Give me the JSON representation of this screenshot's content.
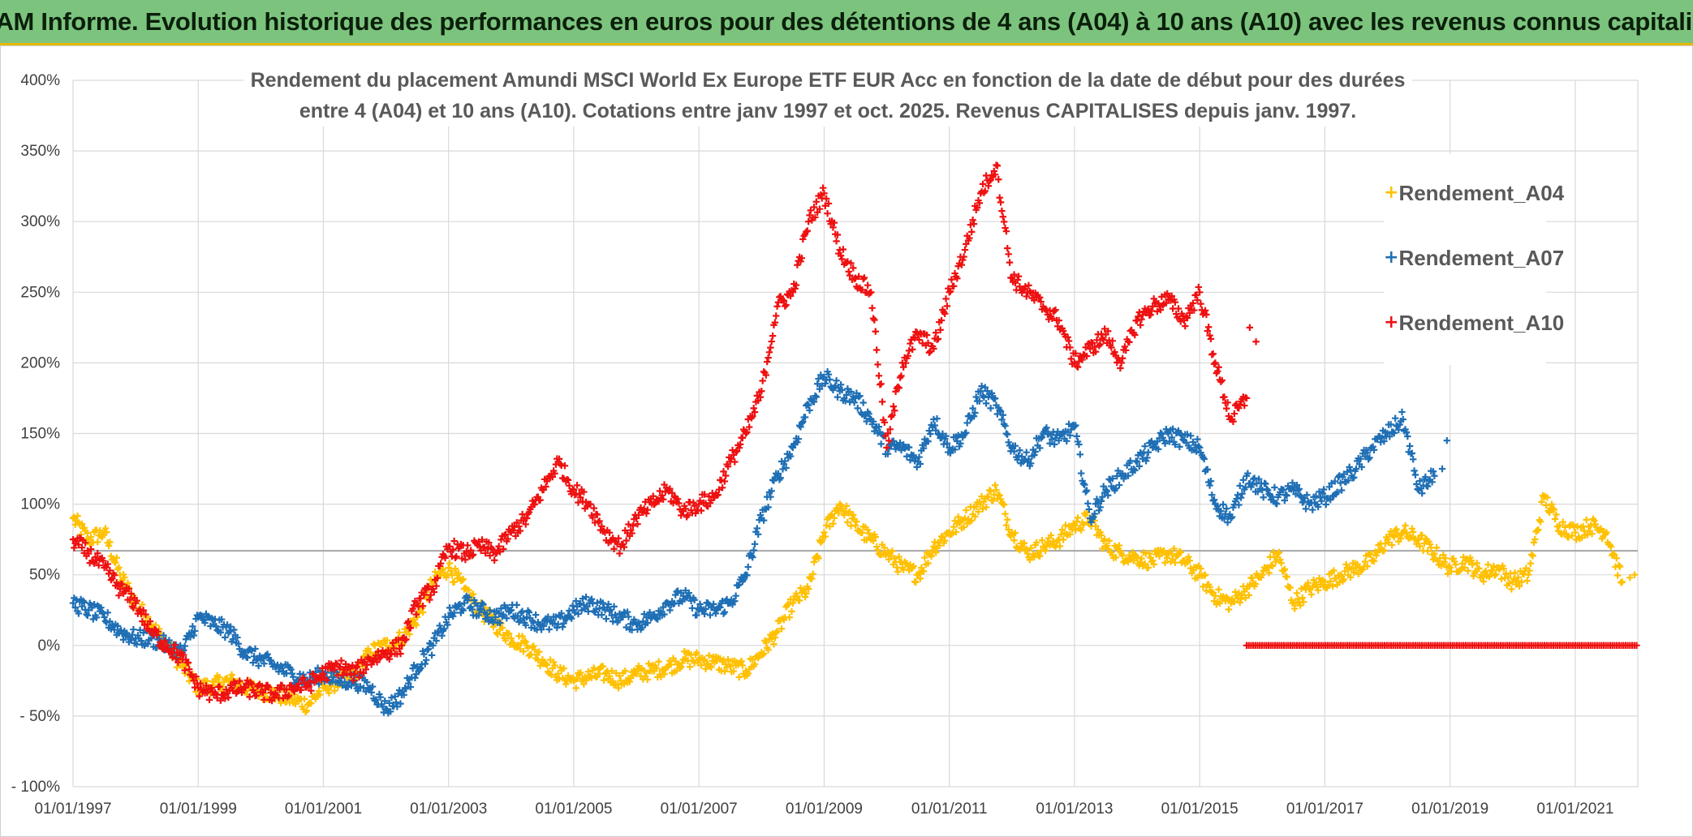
{
  "header": {
    "banner_title": "ADAM Informe. Evolution historique des performances en euros pour des détentions de 4 ans (A04) à 10 ans (A10) avec les revenus connus capitalisés"
  },
  "chart_data": {
    "type": "scatter",
    "title_lines": [
      "Rendement du placement Amundi MSCI World Ex Europe ETF EUR Acc en fonction de la date de début pour des durées",
      "entre 4 (A04) et 10 ans (A10). Cotations entre janv 1997 et oct. 2025. Revenus CAPITALISES depuis janv. 1997."
    ],
    "xlabel": "",
    "ylabel": "",
    "x_unit": "year",
    "xlim": [
      1997.0,
      2022.0
    ],
    "ylim": [
      -100,
      400
    ],
    "y_ticks": [
      -100,
      -50,
      0,
      50,
      100,
      150,
      200,
      250,
      300,
      350,
      400
    ],
    "y_tick_labels": [
      "- 100%",
      "- 50%",
      "0%",
      "50%",
      "100%",
      "150%",
      "200%",
      "250%",
      "300%",
      "350%",
      "400%"
    ],
    "x_ticks": [
      1997,
      1999,
      2001,
      2003,
      2005,
      2007,
      2009,
      2011,
      2013,
      2015,
      2017,
      2019,
      2021
    ],
    "x_tick_labels": [
      "01/01/1997",
      "01/01/1999",
      "01/01/2001",
      "01/01/2003",
      "01/01/2005",
      "01/01/2007",
      "01/01/2009",
      "01/01/2011",
      "01/01/2013",
      "01/01/2015",
      "01/01/2017",
      "01/01/2019",
      "01/01/2021"
    ],
    "grid": true,
    "reference_line_y": 67,
    "legend_position": "right",
    "series": [
      {
        "name": "Rendement_A04",
        "color": "#ffc000",
        "marker": "+",
        "x": [
          1997.0,
          1997.25,
          1997.5,
          1997.75,
          1998.0,
          1998.25,
          1998.5,
          1998.75,
          1999.0,
          1999.25,
          1999.5,
          1999.75,
          2000.0,
          2000.25,
          2000.5,
          2000.75,
          2001.0,
          2001.25,
          2001.5,
          2001.75,
          2002.0,
          2002.25,
          2002.5,
          2002.75,
          2003.0,
          2003.25,
          2003.5,
          2003.75,
          2004.0,
          2004.25,
          2004.5,
          2004.75,
          2005.0,
          2005.25,
          2005.5,
          2005.75,
          2006.0,
          2006.25,
          2006.5,
          2006.75,
          2007.0,
          2007.25,
          2007.5,
          2007.75,
          2008.0,
          2008.25,
          2008.5,
          2008.75,
          2009.0,
          2009.25,
          2009.5,
          2009.75,
          2010.0,
          2010.25,
          2010.5,
          2010.75,
          2011.0,
          2011.25,
          2011.5,
          2011.75,
          2012.0,
          2012.25,
          2012.5,
          2012.75,
          2013.0,
          2013.25,
          2013.5,
          2013.75,
          2014.0,
          2014.25,
          2014.5,
          2014.75,
          2015.0,
          2015.25,
          2015.5,
          2015.75,
          2016.0,
          2016.25,
          2016.5,
          2016.75,
          2017.0,
          2017.25,
          2017.5,
          2017.75,
          2018.0,
          2018.25,
          2018.5,
          2018.75,
          2019.0,
          2019.25,
          2019.5,
          2019.75,
          2020.0,
          2020.25,
          2020.5,
          2020.75,
          2021.0,
          2021.25,
          2021.5,
          2021.75
        ],
        "values": [
          90,
          75,
          80,
          50,
          30,
          15,
          0,
          -15,
          -30,
          -28,
          -25,
          -30,
          -32,
          -35,
          -38,
          -42,
          -30,
          -25,
          -20,
          -5,
          0,
          5,
          20,
          45,
          55,
          40,
          25,
          15,
          5,
          0,
          -10,
          -20,
          -25,
          -22,
          -20,
          -25,
          -20,
          -18,
          -15,
          -10,
          -10,
          -12,
          -15,
          -18,
          -5,
          10,
          30,
          40,
          80,
          100,
          85,
          75,
          65,
          55,
          50,
          70,
          80,
          90,
          100,
          110,
          80,
          65,
          70,
          75,
          85,
          90,
          70,
          65,
          62,
          60,
          65,
          60,
          50,
          35,
          30,
          40,
          50,
          65,
          30,
          40,
          45,
          50,
          55,
          60,
          75,
          80,
          75,
          65,
          55,
          60,
          50,
          55,
          45,
          50,
          105,
          85,
          80,
          85,
          80,
          45
        ],
        "x_extra": [
          2021.875,
          2021.95
        ],
        "values_extra": [
          48,
          50
        ]
      },
      {
        "name": "Rendement_A07",
        "color": "#1f6fb5",
        "marker": "+",
        "x": [
          1997.0,
          1997.25,
          1997.5,
          1997.75,
          1998.0,
          1998.25,
          1998.5,
          1998.75,
          1999.0,
          1999.25,
          1999.5,
          1999.75,
          2000.0,
          2000.25,
          2000.5,
          2000.75,
          2001.0,
          2001.25,
          2001.5,
          2001.75,
          2002.0,
          2002.25,
          2002.5,
          2002.75,
          2003.0,
          2003.25,
          2003.5,
          2003.75,
          2004.0,
          2004.25,
          2004.5,
          2004.75,
          2005.0,
          2005.25,
          2005.5,
          2005.75,
          2006.0,
          2006.25,
          2006.5,
          2006.75,
          2007.0,
          2007.25,
          2007.5,
          2007.75,
          2008.0,
          2008.25,
          2008.5,
          2008.75,
          2009.0,
          2009.25,
          2009.5,
          2009.75,
          2010.0,
          2010.25,
          2010.5,
          2010.75,
          2011.0,
          2011.25,
          2011.5,
          2011.75,
          2012.0,
          2012.25,
          2012.5,
          2012.75,
          2013.0,
          2013.25,
          2013.5,
          2013.75,
          2014.0,
          2014.25,
          2014.5,
          2014.75,
          2015.0,
          2015.25,
          2015.5,
          2015.75,
          2016.0,
          2016.25,
          2016.5,
          2016.75,
          2017.0,
          2017.25,
          2017.5,
          2017.75,
          2018.0,
          2018.25,
          2018.5,
          2018.75
        ],
        "values": [
          30,
          25,
          20,
          10,
          5,
          5,
          0,
          -5,
          20,
          15,
          10,
          -5,
          -10,
          -15,
          -20,
          -25,
          -20,
          -25,
          -25,
          -30,
          -45,
          -35,
          -15,
          0,
          20,
          30,
          25,
          20,
          25,
          20,
          15,
          15,
          25,
          30,
          25,
          20,
          15,
          20,
          30,
          35,
          25,
          25,
          30,
          50,
          90,
          120,
          140,
          170,
          190,
          180,
          175,
          160,
          140,
          140,
          130,
          160,
          140,
          150,
          180,
          170,
          140,
          130,
          150,
          145,
          155,
          90,
          110,
          120,
          130,
          140,
          150,
          145,
          140,
          100,
          90,
          120,
          110,
          105,
          110,
          100,
          105,
          115,
          125,
          140,
          150,
          160,
          110,
          120
        ],
        "x_extra": [
          2018.875,
          2018.95
        ],
        "values_extra": [
          125,
          145
        ]
      },
      {
        "name": "Rendement_A10",
        "color": "#ee1111",
        "marker": "+",
        "x": [
          1997.0,
          1997.25,
          1997.5,
          1997.75,
          1998.0,
          1998.25,
          1998.5,
          1998.75,
          1999.0,
          1999.25,
          1999.5,
          1999.75,
          2000.0,
          2000.25,
          2000.5,
          2000.75,
          2001.0,
          2001.25,
          2001.5,
          2001.75,
          2002.0,
          2002.25,
          2002.5,
          2002.75,
          2003.0,
          2003.25,
          2003.5,
          2003.75,
          2004.0,
          2004.25,
          2004.5,
          2004.75,
          2005.0,
          2005.25,
          2005.5,
          2005.75,
          2006.0,
          2006.25,
          2006.5,
          2006.75,
          2007.0,
          2007.25,
          2007.5,
          2007.75,
          2008.0,
          2008.25,
          2008.5,
          2008.75,
          2009.0,
          2009.25,
          2009.5,
          2009.75,
          2010.0,
          2010.25,
          2010.5,
          2010.75,
          2011.0,
          2011.25,
          2011.5,
          2011.75,
          2012.0,
          2012.25,
          2012.5,
          2012.75,
          2013.0,
          2013.25,
          2013.5,
          2013.75,
          2014.0,
          2014.25,
          2014.5,
          2014.75,
          2015.0,
          2015.25,
          2015.5,
          2015.75
        ],
        "values": [
          75,
          65,
          55,
          40,
          30,
          10,
          0,
          -10,
          -30,
          -35,
          -32,
          -30,
          -33,
          -35,
          -30,
          -28,
          -20,
          -15,
          -20,
          -10,
          -5,
          0,
          30,
          40,
          70,
          65,
          70,
          65,
          80,
          90,
          110,
          130,
          110,
          100,
          80,
          70,
          90,
          100,
          110,
          95,
          100,
          105,
          130,
          150,
          180,
          240,
          250,
          300,
          320,
          280,
          260,
          250,
          140,
          200,
          220,
          210,
          250,
          280,
          320,
          340,
          260,
          250,
          240,
          230,
          200,
          210,
          220,
          200,
          230,
          240,
          245,
          230,
          250,
          200,
          160,
          175
        ],
        "x_extra": [
          2015.8,
          2015.9
        ],
        "values_extra": [
          225,
          215
        ],
        "zero_segment": [
          2015.75,
          2022.0
        ]
      }
    ]
  }
}
